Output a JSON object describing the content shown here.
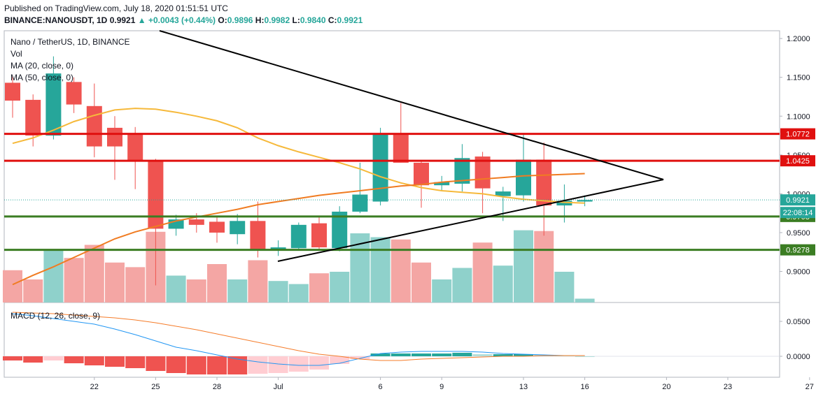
{
  "header": {
    "published": "Published on TradingView.com, July 18, 2020 01:51:51 UTC",
    "symbol": "BINANCE:NANOUSDT, 1D",
    "last": "0.9921",
    "arrow": "▲",
    "change": "+0.0043 (+0.44%)",
    "o_label": "O:",
    "o_value": "0.9896",
    "h_label": "H:",
    "h_value": "0.9982",
    "l_label": "L:",
    "l_value": "0.9840",
    "c_label": "C:",
    "c_value": "0.9921"
  },
  "legend": {
    "title": "Nano / TetherUS, 1D, BINANCE",
    "vol": "Vol",
    "ma20": "MA (20, close, 0)",
    "ma50": "MA (50, close, 0)",
    "macd": "MACD (12, 26, close, 9)"
  },
  "colors": {
    "up": "#26a69a",
    "down": "#ef5350",
    "vol_up": "#8fd1cb",
    "vol_down": "#f4a6a4",
    "ma20": "#f6b93b",
    "ma50": "#f07c22",
    "resistance": "#e0100f",
    "support": "#3b7d23",
    "macd_line": "#2196f3",
    "signal_line": "#f57c2a"
  },
  "badges": {
    "price": "0.9921",
    "countdown": "22:08:14",
    "r1": "1.0772",
    "r2": "1.0425",
    "s1": "0.9708",
    "s2": "0.9278"
  },
  "chart_data": {
    "type": "candlestick",
    "symbol": "NANOUSDT",
    "exchange": "BINANCE",
    "interval": "1D",
    "ylim": [
      0.86,
      1.21
    ],
    "price_ticks": [
      "1.2000",
      "1.1500",
      "1.1000",
      "1.0500",
      "1.0000",
      "0.9500",
      "0.9000"
    ],
    "macd_ticks": [
      "0.0500",
      "0.0000"
    ],
    "x_ticks": [
      {
        "label": "22",
        "day": 22
      },
      {
        "label": "25",
        "day": 25
      },
      {
        "label": "28",
        "day": 28
      },
      {
        "label": "Jul",
        "day": 31
      },
      {
        "label": "6",
        "day": 36
      },
      {
        "label": "9",
        "day": 39
      },
      {
        "label": "13",
        "day": 43
      },
      {
        "label": "16",
        "day": 46
      },
      {
        "label": "20",
        "day": 50
      },
      {
        "label": "23",
        "day": 53
      },
      {
        "label": "27",
        "day": 57
      }
    ],
    "candles": [
      {
        "o": 1.143,
        "h": 1.152,
        "l": 1.098,
        "c": 1.12,
        "v": 0.42
      },
      {
        "o": 1.121,
        "h": 1.128,
        "l": 1.061,
        "c": 1.075,
        "v": 0.3
      },
      {
        "o": 1.075,
        "h": 1.177,
        "l": 1.07,
        "c": 1.155,
        "v": 0.68
      },
      {
        "o": 1.144,
        "h": 1.15,
        "l": 1.104,
        "c": 1.115,
        "v": 0.58
      },
      {
        "o": 1.113,
        "h": 1.142,
        "l": 1.047,
        "c": 1.061,
        "v": 0.75
      },
      {
        "o": 1.085,
        "h": 1.1,
        "l": 1.018,
        "c": 1.061,
        "v": 0.52
      },
      {
        "o": 1.077,
        "h": 1.086,
        "l": 1.006,
        "c": 1.042,
        "v": 0.46
      },
      {
        "o": 1.043,
        "h": 1.045,
        "l": 0.882,
        "c": 0.955,
        "v": 0.92
      },
      {
        "o": 0.955,
        "h": 0.973,
        "l": 0.946,
        "c": 0.967,
        "v": 0.35
      },
      {
        "o": 0.967,
        "h": 0.975,
        "l": 0.95,
        "c": 0.96,
        "v": 0.3
      },
      {
        "o": 0.964,
        "h": 0.972,
        "l": 0.937,
        "c": 0.95,
        "v": 0.5
      },
      {
        "o": 0.948,
        "h": 0.974,
        "l": 0.935,
        "c": 0.965,
        "v": 0.3
      },
      {
        "o": 0.965,
        "h": 0.99,
        "l": 0.918,
        "c": 0.928,
        "v": 0.55
      },
      {
        "o": 0.928,
        "h": 0.94,
        "l": 0.92,
        "c": 0.931,
        "v": 0.28
      },
      {
        "o": 0.93,
        "h": 0.963,
        "l": 0.928,
        "c": 0.96,
        "v": 0.24
      },
      {
        "o": 0.962,
        "h": 0.97,
        "l": 0.927,
        "c": 0.931,
        "v": 0.38
      },
      {
        "o": 0.93,
        "h": 0.984,
        "l": 0.926,
        "c": 0.977,
        "v": 0.4
      },
      {
        "o": 0.977,
        "h": 1.04,
        "l": 0.975,
        "c": 0.999,
        "v": 0.9
      },
      {
        "o": 0.99,
        "h": 1.085,
        "l": 0.985,
        "c": 1.078,
        "v": 0.85
      },
      {
        "o": 1.078,
        "h": 1.117,
        "l": 1.04,
        "c": 1.04,
        "v": 0.82
      },
      {
        "o": 1.04,
        "h": 1.042,
        "l": 0.982,
        "c": 1.011,
        "v": 0.52
      },
      {
        "o": 1.011,
        "h": 1.023,
        "l": 1.004,
        "c": 1.015,
        "v": 0.3
      },
      {
        "o": 1.013,
        "h": 1.064,
        "l": 1.003,
        "c": 1.046,
        "v": 0.45
      },
      {
        "o": 1.048,
        "h": 1.054,
        "l": 0.975,
        "c": 1.007,
        "v": 0.78
      },
      {
        "o": 0.997,
        "h": 1.009,
        "l": 0.965,
        "c": 1.003,
        "v": 0.48
      },
      {
        "o": 0.998,
        "h": 1.077,
        "l": 0.99,
        "c": 1.044,
        "v": 0.94
      },
      {
        "o": 1.044,
        "h": 1.066,
        "l": 0.946,
        "c": 0.985,
        "v": 0.93
      },
      {
        "o": 0.985,
        "h": 1.012,
        "l": 0.963,
        "c": 0.991,
        "v": 0.4
      },
      {
        "o": 0.99,
        "h": 0.998,
        "l": 0.984,
        "c": 0.992,
        "v": 0.05
      }
    ],
    "ma20": [
      1.065,
      1.072,
      1.082,
      1.093,
      1.101,
      1.108,
      1.11,
      1.109,
      1.105,
      1.1,
      1.094,
      1.085,
      1.072,
      1.062,
      1.054,
      1.047,
      1.04,
      1.032,
      1.022,
      1.014,
      1.008,
      1.004,
      1.002,
      1.0,
      0.996,
      0.993,
      0.991,
      0.989,
      0.988
    ],
    "ma50": [
      0.883,
      0.895,
      0.906,
      0.918,
      0.93,
      0.942,
      0.951,
      0.958,
      0.965,
      0.97,
      0.975,
      0.98,
      0.986,
      0.99,
      0.994,
      0.998,
      1.001,
      1.004,
      1.007,
      1.01,
      1.012,
      1.015,
      1.017,
      1.019,
      1.021,
      1.023,
      1.024,
      1.025,
      1.026
    ],
    "macd": {
      "ylim": [
        -0.03,
        0.07
      ],
      "macd": [
        0.061,
        0.058,
        0.054,
        0.05,
        0.046,
        0.039,
        0.031,
        0.022,
        0.013,
        0.008,
        0.002,
        -0.004,
        -0.008,
        -0.011,
        -0.013,
        -0.013,
        -0.01,
        -0.003,
        0.004,
        0.006,
        0.007,
        0.007,
        0.007,
        0.006,
        0.004,
        0.003,
        0.002,
        0.001,
        0.001
      ],
      "signal": [
        0.063,
        0.062,
        0.061,
        0.059,
        0.057,
        0.055,
        0.052,
        0.048,
        0.043,
        0.038,
        0.032,
        0.026,
        0.02,
        0.014,
        0.008,
        0.003,
        0.0,
        -0.004,
        -0.006,
        -0.006,
        -0.004,
        -0.003,
        -0.002,
        -0.001,
        0.0,
        0.0,
        0.001,
        0.001,
        0.001
      ],
      "histogram": [
        -0.006,
        -0.009,
        -0.006,
        -0.01,
        -0.013,
        -0.015,
        -0.017,
        -0.021,
        -0.024,
        -0.026,
        -0.026,
        -0.026,
        -0.025,
        -0.024,
        -0.022,
        -0.019,
        -0.011,
        -0.004,
        0.004,
        0.004,
        0.004,
        0.004,
        0.005,
        0.003,
        0.003,
        0.003,
        0.002,
        0.001,
        0.0
      ]
    }
  }
}
